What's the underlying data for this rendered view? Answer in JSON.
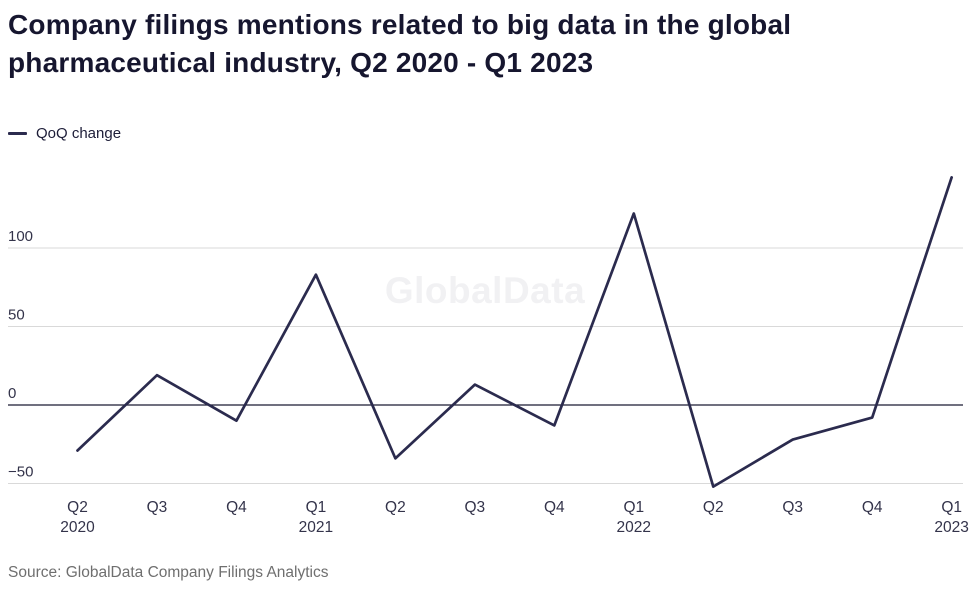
{
  "title": "Company filings mentions related to big data in the global pharmaceutical industry, Q2 2020 - Q1 2023",
  "legend": {
    "label": "QoQ change"
  },
  "watermark": "GlobalData",
  "source": "Source: GlobalData Company Filings Analytics",
  "colors": {
    "line": "#2b2b4e",
    "grid": "#d9d9d9",
    "zero_line": "#1a1a33",
    "title_text": "#16162f",
    "axis_text": "#33334a",
    "source_text": "#6f6f6f",
    "watermark_text": "#f1f1f3"
  },
  "chart_data": {
    "type": "line",
    "title": "Company filings mentions related to big data in the global pharmaceutical industry, Q2 2020 - Q1 2023",
    "xlabel": "",
    "ylabel": "",
    "categories": [
      "Q2 2020",
      "Q3 2020",
      "Q4 2020",
      "Q1 2021",
      "Q2 2021",
      "Q3 2021",
      "Q4 2021",
      "Q1 2022",
      "Q2 2022",
      "Q3 2022",
      "Q4 2022",
      "Q1 2023"
    ],
    "series": [
      {
        "name": "QoQ change",
        "values": [
          -29,
          19,
          -10,
          83,
          -34,
          13,
          -13,
          122,
          -52,
          -22,
          -8,
          145
        ]
      }
    ],
    "x_ticks": [
      {
        "quarter": "Q2",
        "year": "2020"
      },
      {
        "quarter": "Q3",
        "year": ""
      },
      {
        "quarter": "Q4",
        "year": ""
      },
      {
        "quarter": "Q1",
        "year": "2021"
      },
      {
        "quarter": "Q2",
        "year": ""
      },
      {
        "quarter": "Q3",
        "year": ""
      },
      {
        "quarter": "Q4",
        "year": ""
      },
      {
        "quarter": "Q1",
        "year": "2022"
      },
      {
        "quarter": "Q2",
        "year": ""
      },
      {
        "quarter": "Q3",
        "year": ""
      },
      {
        "quarter": "Q4",
        "year": ""
      },
      {
        "quarter": "Q1",
        "year": "2023"
      }
    ],
    "yticks": [
      {
        "value": 100,
        "label": "100"
      },
      {
        "value": 50,
        "label": "50"
      },
      {
        "value": 0,
        "label": "0"
      },
      {
        "value": -50,
        "label": "−50"
      }
    ],
    "ylim": [
      -60,
      155
    ],
    "grid": "horizontal",
    "legend_position": "top-left"
  }
}
